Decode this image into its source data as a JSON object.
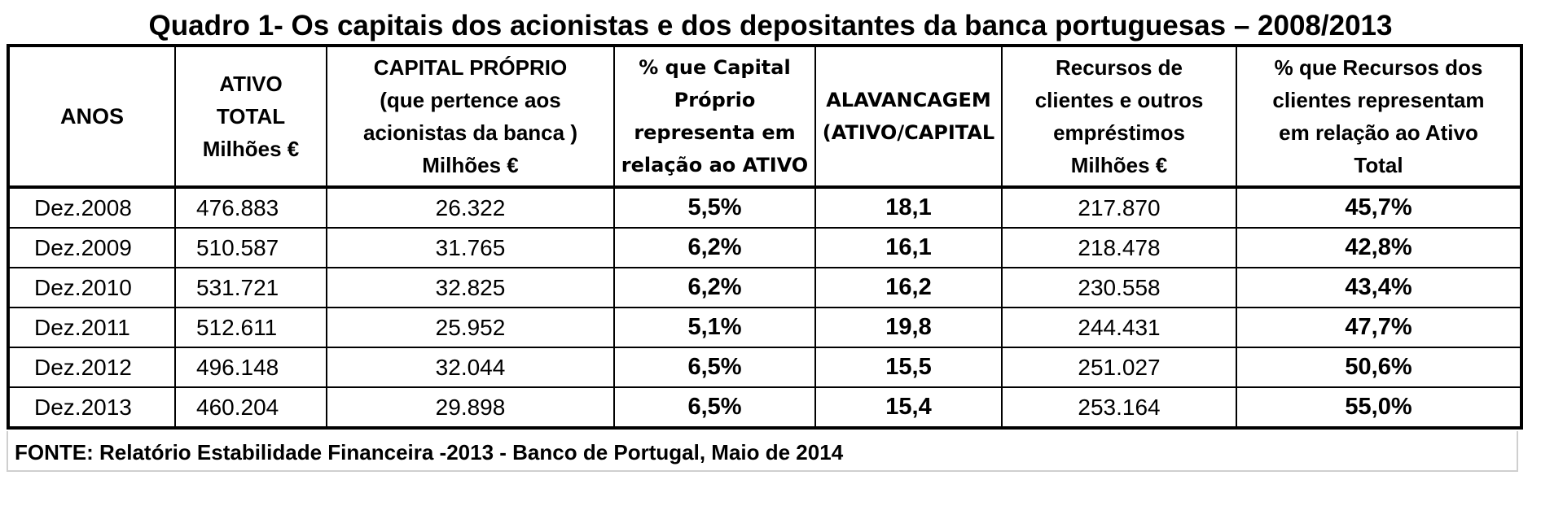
{
  "title": "Quadro 1- Os capitais dos acionistas e dos depositantes da banca portuguesas – 2008/2013",
  "columns": [
    {
      "lines": [
        "ANOS"
      ]
    },
    {
      "lines": [
        "ATIVO",
        "TOTAL",
        "Milhões €"
      ]
    },
    {
      "lines": [
        "CAPITAL  PRÓPRIO",
        "(que pertence aos",
        "acionistas da banca )",
        "Milhões €"
      ]
    },
    {
      "lines": [
        "% que Capital",
        "Próprio",
        "representa em",
        "relação ao ATIVO"
      ]
    },
    {
      "lines": [
        "ALAVANCAGEM",
        "(ATIVO/CAPITAL"
      ]
    },
    {
      "lines": [
        "Recursos de",
        "clientes e outros",
        "empréstimos",
        "Milhões €"
      ]
    },
    {
      "lines": [
        "% que Recursos dos",
        "clientes representam",
        "em relação ao Ativo",
        "Total"
      ]
    }
  ],
  "rows": [
    [
      "Dez.2008",
      "476.883",
      "26.322",
      "5,5%",
      "18,1",
      "217.870",
      "45,7%"
    ],
    [
      "Dez.2009",
      "510.587",
      "31.765",
      "6,2%",
      "16,1",
      "218.478",
      "42,8%"
    ],
    [
      "Dez.2010",
      "531.721",
      "32.825",
      "6,2%",
      "16,2",
      "230.558",
      "43,4%"
    ],
    [
      "Dez.2011",
      "512.611",
      "25.952",
      "5,1%",
      "19,8",
      "244.431",
      "47,7%"
    ],
    [
      "Dez.2012",
      "496.148",
      "32.044",
      "6,5%",
      "15,5",
      "251.027",
      "50,6%"
    ],
    [
      "Dez.2013",
      "460.204",
      "29.898",
      "6,5%",
      "15,4",
      "253.164",
      "55,0%"
    ]
  ],
  "source": "FONTE: Relatório Estabilidade Financeira -2013 - Banco de Portugal, Maio de 2014"
}
